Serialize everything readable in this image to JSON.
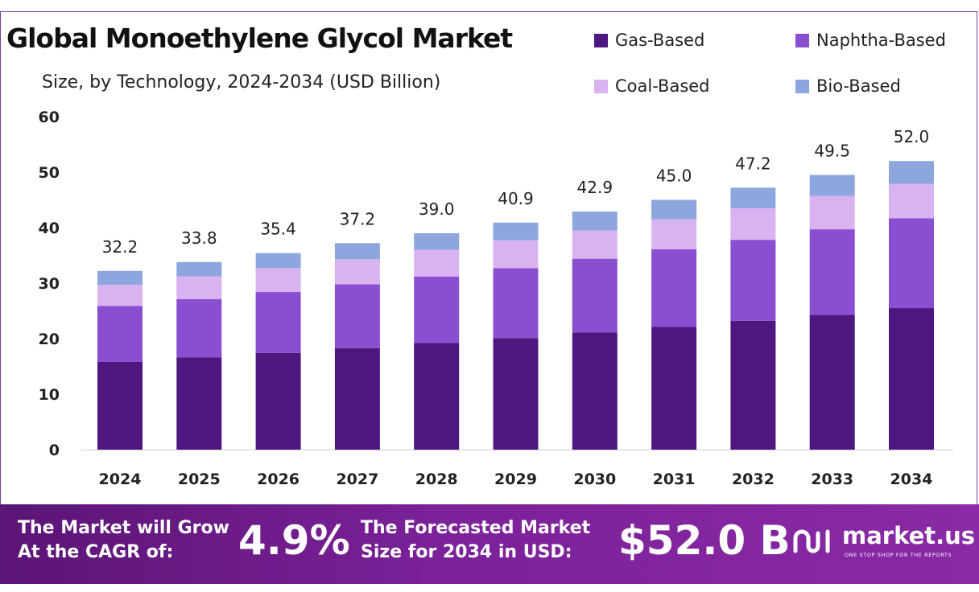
{
  "chart_data": {
    "type": "bar",
    "stacked": true,
    "title": "Global Monoethylene Glycol Market",
    "subtitle": "Size, by Technology, 2024-2034 (USD Billion)",
    "categories": [
      "2024",
      "2025",
      "2026",
      "2027",
      "2028",
      "2029",
      "2030",
      "2031",
      "2032",
      "2033",
      "2034"
    ],
    "series": [
      {
        "name": "Gas-Based",
        "color": "#4e1780",
        "values": [
          15.8,
          16.6,
          17.4,
          18.3,
          19.2,
          20.1,
          21.1,
          22.1,
          23.2,
          24.3,
          25.5
        ]
      },
      {
        "name": "Naphtha-Based",
        "color": "#8a4fd0",
        "values": [
          10.1,
          10.5,
          11.0,
          11.5,
          12.0,
          12.6,
          13.3,
          14.0,
          14.6,
          15.4,
          16.2
        ]
      },
      {
        "name": "Coal-Based",
        "color": "#d9b3ef",
        "values": [
          3.8,
          4.1,
          4.3,
          4.5,
          4.8,
          5.0,
          5.1,
          5.4,
          5.7,
          6.0,
          6.2
        ]
      },
      {
        "name": "Bio-Based",
        "color": "#8ea6de",
        "values": [
          2.5,
          2.6,
          2.7,
          2.9,
          3.0,
          3.2,
          3.4,
          3.5,
          3.7,
          3.8,
          4.1
        ]
      }
    ],
    "totals": [
      "32.2",
      "33.8",
      "35.4",
      "37.2",
      "39.0",
      "40.9",
      "42.9",
      "45.0",
      "47.2",
      "49.5",
      "52.0"
    ],
    "ylim": [
      0,
      60
    ],
    "yticks": [
      0,
      10,
      20,
      30,
      40,
      50,
      60
    ],
    "grid": false,
    "legend_position": "top-right"
  },
  "footer": {
    "cagr_line1": "The Market will Grow",
    "cagr_line2": "At the CAGR of:",
    "cagr_value": "4.9%",
    "forecast_line1": "The Forecasted Market",
    "forecast_line2": "Size for 2034 in USD:",
    "forecast_value": "$52.0 B",
    "brand": "market.us",
    "tagline": "ONE STOP SHOP FOR THE REPORTS"
  }
}
